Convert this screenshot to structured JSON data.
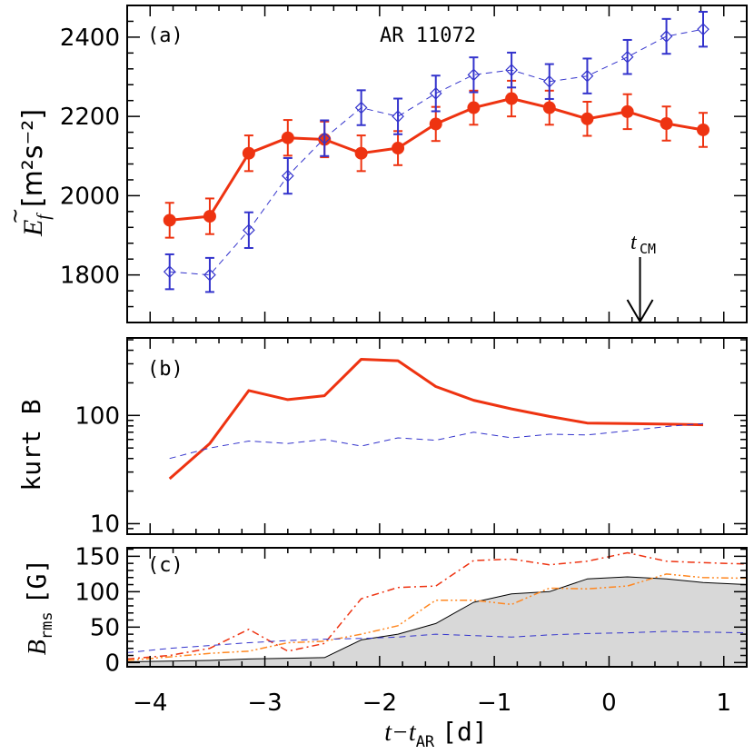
{
  "figure": {
    "ar_label": "AR 11072",
    "tcm_label": "t",
    "tcm_sub": "CM",
    "xlabel": {
      "main": "t−t",
      "sub": "AR",
      "unit": "[d]"
    }
  },
  "colors": {
    "red": "#ee3311",
    "blue": "#3333cc",
    "orange": "#ff8822",
    "gray_fill": "#d8d8d8"
  },
  "chart_data": [
    {
      "type": "line",
      "panel_label": "(a)",
      "ylabel": {
        "sym": "E",
        "sub": "f",
        "unit": "[m²s⁻²]"
      },
      "xlim": [
        -4.2,
        1.2
      ],
      "ylim": [
        1680,
        2480
      ],
      "x_ticks": [
        -4,
        -3,
        -2,
        -1,
        0,
        1
      ],
      "y_ticks": [
        1800,
        2000,
        2200,
        2400
      ],
      "tcm_x": 0.27,
      "series": [
        {
          "style": "red-solid-filled-circles",
          "x": [
            -3.83,
            -3.48,
            -3.14,
            -2.8,
            -2.48,
            -2.16,
            -1.84,
            -1.51,
            -1.18,
            -0.85,
            -0.52,
            -0.19,
            0.16,
            0.5,
            0.82
          ],
          "y": [
            1938,
            1948,
            2107,
            2146,
            2142,
            2107,
            2120,
            2181,
            2222,
            2245,
            2222,
            2194,
            2212,
            2182,
            2166
          ],
          "err": [
            44,
            45,
            45,
            45,
            45,
            45,
            43,
            43,
            43,
            45,
            43,
            43,
            44,
            43,
            43
          ]
        },
        {
          "style": "blue-dashed-open-diamonds",
          "x": [
            -3.83,
            -3.48,
            -3.14,
            -2.8,
            -2.48,
            -2.16,
            -1.84,
            -1.51,
            -1.18,
            -0.85,
            -0.52,
            -0.19,
            0.16,
            0.5,
            0.82
          ],
          "y": [
            1808,
            1800,
            1913,
            2050,
            2145,
            2222,
            2200,
            2258,
            2305,
            2317,
            2288,
            2302,
            2350,
            2402,
            2420
          ],
          "err": [
            44,
            43,
            45,
            45,
            45,
            44,
            45,
            45,
            44,
            44,
            44,
            44,
            43,
            44,
            44
          ]
        }
      ]
    },
    {
      "type": "line",
      "panel_label": "(b)",
      "ylabel": "kurt B",
      "xlim": [
        -4.2,
        1.2
      ],
      "ylim": [
        8,
        520
      ],
      "log_y": true,
      "y_ticks": [
        10,
        100
      ],
      "x_ticks": [
        -4,
        -3,
        -2,
        -1,
        0,
        1
      ],
      "series": [
        {
          "style": "red-solid",
          "x": [
            -3.83,
            -3.48,
            -3.14,
            -2.8,
            -2.48,
            -2.16,
            -1.84,
            -1.51,
            -1.18,
            -0.85,
            -0.52,
            -0.19,
            0.16,
            0.5,
            0.82
          ],
          "y": [
            26,
            55,
            170,
            140,
            152,
            330,
            320,
            185,
            138,
            115,
            98,
            85,
            84,
            83,
            82
          ]
        },
        {
          "style": "blue-dashed",
          "x": [
            -3.83,
            -3.48,
            -3.14,
            -2.8,
            -2.48,
            -2.16,
            -1.84,
            -1.51,
            -1.18,
            -0.85,
            -0.52,
            -0.19,
            0.16,
            0.5,
            0.82
          ],
          "y": [
            40,
            50,
            58,
            55,
            60,
            52,
            62,
            59,
            70,
            62,
            67,
            66,
            72,
            79,
            84
          ]
        }
      ]
    },
    {
      "type": "area",
      "panel_label": "(c)",
      "ylabel": {
        "sym": "B",
        "sub": "rms",
        "unit": "[G]"
      },
      "xlim": [
        -4.2,
        1.2
      ],
      "ylim": [
        -6,
        162
      ],
      "y_ticks": [
        0,
        50,
        100,
        150
      ],
      "x_ticks": [
        -4,
        -3,
        -2,
        -1,
        0,
        1
      ],
      "series": [
        {
          "style": "gray-filled-area",
          "x": [
            -4.2,
            -3.83,
            -3.48,
            -3.14,
            -2.8,
            -2.48,
            -2.16,
            -1.84,
            -1.51,
            -1.18,
            -0.85,
            -0.52,
            -0.19,
            0.16,
            0.5,
            0.82,
            1.2
          ],
          "y": [
            1,
            2,
            3,
            5,
            6,
            7,
            32,
            40,
            55,
            85,
            97,
            100,
            118,
            121,
            118,
            113,
            110
          ]
        },
        {
          "style": "red-dashdot",
          "x": [
            -4.2,
            -3.83,
            -3.48,
            -3.14,
            -2.8,
            -2.48,
            -2.16,
            -1.84,
            -1.51,
            -1.18,
            -0.85,
            -0.52,
            -0.19,
            0.16,
            0.5,
            0.82,
            1.2
          ],
          "y": [
            5,
            10,
            20,
            47,
            16,
            27,
            90,
            106,
            108,
            144,
            146,
            138,
            143,
            155,
            143,
            141,
            139
          ]
        },
        {
          "style": "orange-dashdotdot",
          "x": [
            -4.2,
            -3.83,
            -3.48,
            -3.14,
            -2.8,
            -2.48,
            -2.16,
            -1.84,
            -1.51,
            -1.18,
            -0.85,
            -0.52,
            -0.19,
            0.16,
            0.5,
            0.82,
            1.2
          ],
          "y": [
            3,
            8,
            13,
            16,
            28,
            30,
            40,
            52,
            88,
            88,
            82,
            105,
            104,
            108,
            125,
            120,
            119
          ]
        },
        {
          "style": "blue-dashed",
          "x": [
            -4.2,
            -3.83,
            -3.48,
            -3.14,
            -2.8,
            -2.48,
            -2.16,
            -1.84,
            -1.51,
            -1.18,
            -0.85,
            -0.52,
            -0.19,
            0.16,
            0.5,
            0.82,
            1.2
          ],
          "y": [
            14,
            20,
            24,
            28,
            31,
            33,
            34,
            36,
            40,
            38,
            36,
            39,
            41,
            42,
            44,
            43,
            42
          ]
        }
      ]
    }
  ]
}
